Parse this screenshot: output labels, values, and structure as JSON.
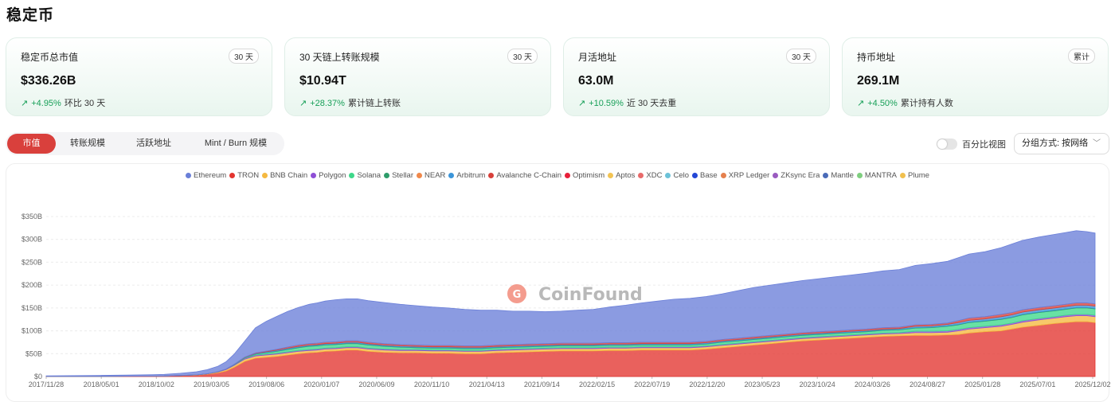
{
  "page": {
    "title": "稳定币"
  },
  "cards": [
    {
      "label": "稳定币总市值",
      "badge": "30 天",
      "value": "$336.26B",
      "delta": "+4.95%",
      "desc": "环比 30 天"
    },
    {
      "label": "30 天链上转账规模",
      "badge": "30 天",
      "value": "$10.94T",
      "delta": "+28.37%",
      "desc": "累计链上转账"
    },
    {
      "label": "月活地址",
      "badge": "30 天",
      "value": "63.0M",
      "delta": "+10.59%",
      "desc": "近 30 天去重"
    },
    {
      "label": "持币地址",
      "badge": "累计",
      "value": "269.1M",
      "delta": "+4.50%",
      "desc": "累计持有人数"
    }
  ],
  "tabs": [
    "市值",
    "转账规模",
    "活跃地址",
    "Mint / Burn 规模"
  ],
  "active_tab": 0,
  "toggle": {
    "label": "百分比视图",
    "on": false
  },
  "group_select": {
    "value": "分组方式: 按网络"
  },
  "watermark": "CoinFound",
  "colors": {
    "accent": "#d9403c",
    "positive": "#18a058"
  },
  "chart_data": {
    "type": "area",
    "stacked": true,
    "legend_position": "top-center",
    "grid": true,
    "ylim": [
      0,
      350
    ],
    "y_ticks": [
      "$0",
      "$50B",
      "$100B",
      "$150B",
      "$200B",
      "$250B",
      "$300B",
      "$350B"
    ],
    "y_tick_values": [
      0,
      50,
      100,
      150,
      200,
      250,
      300,
      350
    ],
    "x_ticks": [
      "2017/11/28",
      "2018/05/01",
      "2018/10/02",
      "2019/03/05",
      "2019/08/06",
      "2020/01/07",
      "2020/06/09",
      "2020/11/10",
      "2021/04/13",
      "2021/09/14",
      "2022/02/15",
      "2022/07/19",
      "2022/12/20",
      "2023/05/23",
      "2023/10/24",
      "2024/03/26",
      "2024/08/27",
      "2025/01/28",
      "2025/07/01",
      "2025/12/02"
    ],
    "legend": [
      {
        "name": "Ethereum",
        "color": "#6a7fd8"
      },
      {
        "name": "TRON",
        "color": "#e3342f"
      },
      {
        "name": "BNB Chain",
        "color": "#f5b940"
      },
      {
        "name": "Polygon",
        "color": "#8f4fd6"
      },
      {
        "name": "Solana",
        "color": "#3ed88a"
      },
      {
        "name": "Stellar",
        "color": "#2e9c6a"
      },
      {
        "name": "NEAR",
        "color": "#f0884a"
      },
      {
        "name": "Arbitrum",
        "color": "#3b95d9"
      },
      {
        "name": "Avalanche C-Chain",
        "color": "#d8403a"
      },
      {
        "name": "Optimism",
        "color": "#e8203a"
      },
      {
        "name": "Aptos",
        "color": "#f3c453"
      },
      {
        "name": "XDC",
        "color": "#e86a6a"
      },
      {
        "name": "Celo",
        "color": "#6cc2d8"
      },
      {
        "name": "Base",
        "color": "#2447d6"
      },
      {
        "name": "XRP Ledger",
        "color": "#e5804d"
      },
      {
        "name": "ZKsync Era",
        "color": "#9a5bc0"
      },
      {
        "name": "Mantle",
        "color": "#4a6bb8"
      },
      {
        "name": "MANTRA",
        "color": "#7fcf7f"
      },
      {
        "name": "Plume",
        "color": "#f1c04e"
      }
    ],
    "x": [
      0,
      0.5,
      1,
      1.5,
      2,
      2.2,
      2.5,
      2.8,
      3.0,
      3.2,
      3.35,
      3.5,
      3.7,
      3.9,
      4.1,
      4.3,
      4.5,
      4.7,
      4.9,
      5.05,
      5.2,
      5.4,
      5.6,
      5.8,
      6.0,
      6.3,
      6.6,
      6.9,
      7.2,
      7.5,
      7.8,
      8.1,
      8.4,
      8.7,
      9.0,
      9.3,
      9.6,
      9.9,
      10.2,
      10.5,
      10.8,
      11.1,
      11.4,
      11.7,
      12.0,
      12.3,
      12.6,
      12.9,
      13.2,
      13.5,
      13.8,
      14.1,
      14.4,
      14.7,
      15.0,
      15.3,
      15.6,
      15.9,
      16.2,
      16.5,
      16.8,
      17.0,
      17.2,
      17.5,
      17.8,
      18.0,
      18.2,
      18.5,
      18.8,
      19.0,
      19.2,
      19.4,
      19.55
    ],
    "series": [
      {
        "name": "TRON",
        "values": [
          0.5,
          0.5,
          0.5,
          0.7,
          1,
          1.2,
          2,
          3,
          5,
          8,
          12,
          20,
          33,
          40,
          42,
          44,
          47,
          50,
          52,
          53,
          55,
          56,
          58,
          58,
          55,
          53,
          52,
          52,
          51,
          51,
          50,
          50,
          52,
          53,
          54,
          55,
          56,
          56,
          56,
          57,
          57,
          58,
          58,
          58,
          58,
          60,
          63,
          66,
          69,
          72,
          75,
          78,
          80,
          82,
          84,
          86,
          88,
          89,
          90,
          90,
          91,
          92,
          95,
          98,
          100,
          104,
          108,
          112,
          116,
          118,
          120,
          120,
          118
        ]
      },
      {
        "name": "BNB Chain",
        "values": [
          0,
          0,
          0,
          0,
          0,
          0,
          0.2,
          0.5,
          1,
          2,
          3,
          4,
          5,
          5,
          5,
          5,
          5,
          5,
          5,
          5,
          5,
          5,
          5,
          5,
          5,
          5,
          5,
          5,
          5,
          5,
          5,
          5,
          5,
          5,
          5,
          5,
          5,
          5,
          5,
          5,
          5,
          5,
          5,
          5,
          5,
          5,
          5,
          5,
          5,
          5,
          5,
          5,
          5,
          5,
          5,
          5,
          5,
          5,
          6,
          6,
          6,
          8,
          9,
          9,
          10,
          10,
          11,
          12,
          12,
          13,
          13,
          13,
          13
        ]
      },
      {
        "name": "Polygon",
        "values": [
          0,
          0,
          0,
          0,
          0,
          0,
          0,
          0,
          0,
          0.5,
          1,
          1.5,
          2,
          2,
          2,
          2,
          2,
          2,
          2,
          2,
          2,
          2,
          2,
          2,
          2,
          2,
          2,
          2,
          2,
          2,
          2,
          2,
          2,
          2,
          2,
          2,
          2,
          2,
          2,
          2,
          2,
          2,
          2,
          2,
          2,
          2,
          2,
          2,
          2,
          2,
          2,
          2,
          2,
          2,
          2,
          2,
          2,
          2,
          3,
          3,
          3,
          3,
          3,
          3,
          3,
          3,
          3,
          3,
          3,
          3,
          3,
          3,
          3
        ]
      },
      {
        "name": "Solana",
        "values": [
          0,
          0,
          0,
          0,
          0,
          0,
          0,
          0,
          0,
          0,
          0.2,
          0.5,
          1,
          2,
          3,
          4,
          5,
          6,
          7,
          7,
          7,
          7,
          7,
          7,
          7,
          6,
          5,
          4,
          4,
          4,
          4,
          4,
          4,
          4,
          4,
          4,
          4,
          4,
          4,
          4,
          4,
          4,
          4,
          4,
          4,
          4,
          5,
          5,
          5,
          5,
          5,
          5,
          5,
          5,
          5,
          5,
          6,
          6,
          7,
          8,
          10,
          10,
          11,
          11,
          12,
          12,
          13,
          13,
          13,
          13,
          14,
          14,
          14
        ]
      },
      {
        "name": "Stellar",
        "values": [
          0,
          0,
          0,
          0,
          0,
          0,
          0,
          0,
          0,
          0,
          0,
          0.2,
          0.4,
          0.6,
          0.8,
          1,
          1,
          1,
          1,
          1,
          1,
          1,
          1,
          1,
          1,
          1,
          1,
          1,
          1,
          1,
          1,
          1,
          1,
          1,
          1,
          1,
          1,
          1,
          1,
          1,
          1,
          1,
          1,
          1,
          1,
          1,
          1,
          1,
          1,
          1,
          1,
          1,
          1,
          1,
          1,
          1,
          1,
          1,
          1,
          1,
          1,
          1,
          1,
          1,
          1,
          1,
          1,
          1,
          1,
          1,
          1,
          1,
          1
        ]
      },
      {
        "name": "Arbitrum",
        "values": [
          0,
          0,
          0,
          0,
          0,
          0,
          0,
          0,
          0,
          0,
          0,
          0.3,
          0.6,
          1,
          1.3,
          1.6,
          2,
          2,
          2,
          2,
          2,
          2,
          2,
          2,
          2,
          2,
          2,
          2,
          2,
          2,
          2,
          2,
          2,
          2,
          2,
          2,
          2,
          2,
          2,
          2,
          2,
          2,
          2,
          2,
          2,
          2,
          2,
          2,
          2,
          2,
          2,
          2,
          2,
          2,
          2,
          2,
          2,
          2,
          3,
          3,
          3,
          4,
          4,
          4,
          5,
          5,
          5,
          5,
          5,
          5,
          5,
          5,
          5
        ]
      },
      {
        "name": "Avalanche C-Chain",
        "values": [
          0,
          0,
          0,
          0,
          0,
          0,
          0,
          0,
          0,
          0,
          0,
          0,
          0.5,
          1,
          1.5,
          2,
          2.5,
          3,
          3,
          3,
          3,
          3,
          3,
          3,
          3,
          3,
          3,
          3,
          3,
          3,
          3,
          3,
          3,
          3,
          3,
          3,
          3,
          3,
          3,
          3,
          3,
          3,
          3,
          3,
          3,
          3,
          3,
          3,
          3,
          3,
          3,
          3,
          3,
          3,
          3,
          3,
          3,
          3,
          3,
          3,
          3,
          4,
          5,
          5,
          5,
          5,
          5,
          5,
          5,
          5,
          5,
          5,
          5
        ]
      },
      {
        "name": "Ethereum",
        "values": [
          1,
          1.5,
          2,
          2.5,
          3,
          3.5,
          5,
          7,
          9,
          12,
          16,
          22,
          35,
          55,
          65,
          72,
          78,
          82,
          86,
          88,
          90,
          92,
          92,
          92,
          91,
          90,
          88,
          86,
          84,
          82,
          80,
          78,
          76,
          73,
          72,
          70,
          70,
          72,
          74,
          78,
          82,
          86,
          90,
          94,
          96,
          98,
          100,
          104,
          108,
          110,
          112,
          114,
          116,
          118,
          120,
          122,
          124,
          126,
          130,
          133,
          135,
          138,
          140,
          142,
          146,
          150,
          152,
          154,
          156,
          157,
          158,
          156,
          155
        ]
      }
    ]
  }
}
